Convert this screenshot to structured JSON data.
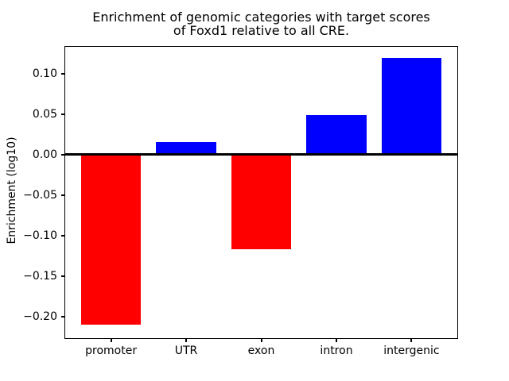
{
  "window": {
    "background": "#ffffff"
  },
  "chart_data": {
    "type": "bar",
    "title": "Enrichment of genomic categories with target scores\nof Foxd1 relative to all CRE.",
    "xlabel": "",
    "ylabel": "Enrichment (log10)",
    "categories": [
      "promoter",
      "UTR",
      "exon",
      "intron",
      "intergenic"
    ],
    "values": [
      -0.21,
      0.015,
      -0.117,
      0.049,
      0.119
    ],
    "bar_colors": [
      "#ff0000",
      "#0000ff",
      "#ff0000",
      "#0000ff",
      "#0000ff"
    ],
    "positive_color": "#0000ff",
    "negative_color": "#ff0000",
    "bar_width_fraction": 0.8,
    "ylim": [
      -0.228,
      0.134
    ],
    "xlim": [
      -0.62,
      4.62
    ],
    "yticks": [
      {
        "value": 0.1,
        "label": "0.10"
      },
      {
        "value": 0.05,
        "label": "0.05"
      },
      {
        "value": 0.0,
        "label": "0.00"
      },
      {
        "value": -0.05,
        "label": "−0.05"
      },
      {
        "value": -0.1,
        "label": "−0.10"
      },
      {
        "value": -0.15,
        "label": "−0.15"
      },
      {
        "value": -0.2,
        "label": "−0.20"
      }
    ],
    "zero_line": true,
    "grid": false,
    "legend": false
  }
}
